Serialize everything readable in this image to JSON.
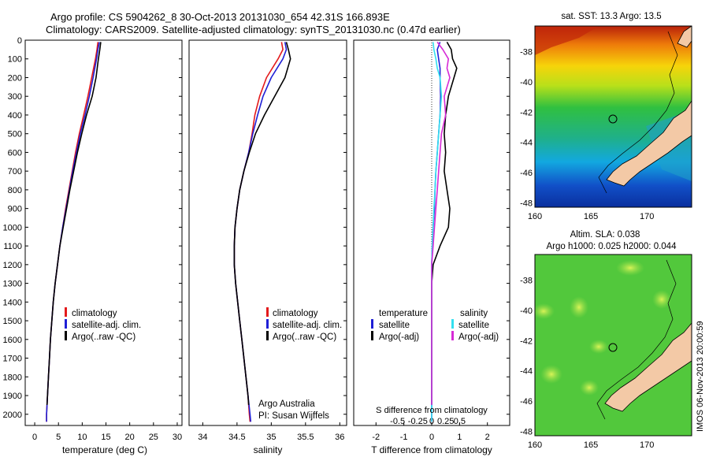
{
  "header": {
    "line1": "Argo profile: CS 5904262_8 30-Oct-2013 20131030_654 42.31S 166.893E",
    "line2": "Climatology: CARS2009. Satellite-adjusted climatology: synTS_20131030.nc (0.47d earlier)"
  },
  "colors": {
    "climatology": "#e31a1c",
    "satellite": "#1f1fd6",
    "argo": "#000000",
    "salinity_sat": "#33e0f0",
    "salinity_argo": "#d62ad6",
    "land": "#f3c9a6"
  },
  "chart_data": [
    {
      "type": "line",
      "xlabel": "temperature (deg C)",
      "ylabel": "",
      "xlim": [
        -2,
        31
      ],
      "ylim": [
        2060,
        0
      ],
      "y_reversed": true,
      "xticks": [
        0,
        5,
        10,
        15,
        20,
        25,
        30
      ],
      "yticks": [
        0,
        100,
        200,
        300,
        400,
        500,
        600,
        700,
        800,
        900,
        1000,
        1100,
        1200,
        1300,
        1400,
        1500,
        1600,
        1700,
        1800,
        1900,
        2000
      ],
      "legend": [
        "climatology",
        "satellite-adj. clim.",
        "Argo(..raw -QC)"
      ],
      "series": [
        {
          "name": "climatology",
          "color": "#e31a1c",
          "depth": [
            10,
            50,
            100,
            200,
            300,
            400,
            500,
            600,
            700,
            800,
            900,
            1000,
            1100,
            1200,
            1300,
            1400,
            1500,
            1600,
            1700,
            1800,
            1900,
            2000,
            2040
          ],
          "values": [
            13.3,
            13.1,
            12.8,
            12.0,
            11.2,
            10.3,
            9.4,
            8.6,
            7.9,
            7.2,
            6.5,
            5.9,
            5.3,
            4.8,
            4.3,
            3.9,
            3.6,
            3.3,
            3.1,
            2.9,
            2.7,
            2.5,
            2.5
          ]
        },
        {
          "name": "satellite-adj. clim.",
          "color": "#1f1fd6",
          "depth": [
            10,
            50,
            100,
            200,
            300,
            400,
            500,
            600,
            700,
            800,
            900,
            1000,
            1100,
            1200,
            1300,
            1400,
            1500,
            1600,
            1700,
            1800,
            1900,
            2000,
            2040
          ],
          "values": [
            13.6,
            13.3,
            13.0,
            12.3,
            11.5,
            10.6,
            9.6,
            8.8,
            8.0,
            7.3,
            6.6,
            5.9,
            5.3,
            4.8,
            4.3,
            3.9,
            3.6,
            3.3,
            3.1,
            2.9,
            2.7,
            2.5,
            2.5
          ]
        },
        {
          "name": "Argo(..raw -QC)",
          "color": "#000000",
          "depth": [
            10,
            50,
            100,
            200,
            300,
            400,
            500,
            600,
            700,
            800,
            900,
            1000,
            1100,
            1200,
            1300,
            1400,
            1500,
            1600,
            1700,
            1800,
            1900,
            1950
          ],
          "values": [
            13.9,
            13.7,
            13.4,
            12.9,
            12.1,
            10.9,
            9.9,
            9.0,
            8.2,
            7.4,
            6.7,
            6.0,
            5.3,
            4.8,
            4.3,
            3.9,
            3.6,
            3.3,
            3.1,
            2.9,
            2.7,
            2.6
          ]
        }
      ]
    },
    {
      "type": "line",
      "xlabel": "salinity",
      "xlim": [
        33.8,
        36.1
      ],
      "ylim": [
        2060,
        0
      ],
      "y_reversed": true,
      "xticks": [
        34,
        34.5,
        35,
        35.5,
        36
      ],
      "legend": [
        "climatology",
        "satellite-adj. clim.",
        "Argo(..raw -QC)"
      ],
      "series": [
        {
          "name": "climatology",
          "color": "#e31a1c",
          "depth": [
            10,
            50,
            100,
            200,
            300,
            400,
            500,
            600,
            700,
            800,
            900,
            1000,
            1100,
            1200,
            1300,
            1400,
            1500,
            1600,
            1700,
            1800,
            1900,
            2000,
            2040
          ],
          "values": [
            35.15,
            35.17,
            35.1,
            34.93,
            34.83,
            34.76,
            34.72,
            34.67,
            34.6,
            34.54,
            34.5,
            34.47,
            34.46,
            34.46,
            34.48,
            34.51,
            34.54,
            34.57,
            34.6,
            34.63,
            34.66,
            34.68,
            34.69
          ]
        },
        {
          "name": "satellite-adj. clim.",
          "color": "#1f1fd6",
          "depth": [
            10,
            50,
            100,
            200,
            300,
            400,
            500,
            600,
            700,
            800,
            900,
            1000,
            1100,
            1200,
            1300,
            1400,
            1500,
            1600,
            1700,
            1800,
            1900,
            2000,
            2040
          ],
          "values": [
            35.2,
            35.22,
            35.17,
            35.0,
            34.88,
            34.8,
            34.73,
            34.67,
            34.6,
            34.54,
            34.5,
            34.47,
            34.46,
            34.46,
            34.48,
            34.51,
            34.54,
            34.57,
            34.6,
            34.63,
            34.66,
            34.69,
            34.7
          ]
        },
        {
          "name": "Argo(..raw -QC)",
          "color": "#000000",
          "depth": [
            10,
            50,
            100,
            200,
            300,
            400,
            500,
            600,
            700,
            800,
            900,
            1000,
            1100,
            1200,
            1300,
            1400,
            1500,
            1600,
            1700,
            1800,
            1900,
            1950
          ],
          "values": [
            35.22,
            35.25,
            35.28,
            35.2,
            35.05,
            34.9,
            34.77,
            34.68,
            34.6,
            34.54,
            34.5,
            34.47,
            34.46,
            34.46,
            34.48,
            34.51,
            34.54,
            34.57,
            34.6,
            34.63,
            34.66,
            34.67
          ]
        }
      ],
      "annotations": [
        "Argo Australia",
        "PI: Susan Wijffels"
      ]
    },
    {
      "type": "line",
      "xlabel": "T difference from climatology",
      "xlabel_top": "S difference from climatology",
      "xlim": [
        -2.8,
        2.8
      ],
      "ylim": [
        2060,
        0
      ],
      "y_reversed": true,
      "xticks_bottom": [
        -2,
        -1,
        0,
        1,
        2
      ],
      "xticks_top": [
        "-0.5",
        "-0.25",
        "0",
        "0.25",
        "0.5"
      ],
      "legend_groups": [
        {
          "title": "temperature",
          "items": [
            "satellite",
            "Argo(-adj)"
          ]
        },
        {
          "title": "salinity",
          "items": [
            "satellite",
            "Argo(-adj)"
          ]
        }
      ],
      "series": [
        {
          "name": "temperature satellite",
          "color": "#1f1fd6",
          "depth": [
            10,
            50,
            100,
            150,
            200,
            300,
            400,
            500,
            600,
            700,
            800,
            900,
            1000,
            1100,
            1200,
            1300,
            1400,
            1500,
            1600,
            1700,
            1800,
            1900,
            2000,
            2040
          ],
          "values": [
            0.3,
            0.2,
            0.25,
            0.3,
            0.3,
            0.32,
            0.3,
            0.25,
            0.2,
            0.15,
            0.12,
            0.1,
            0.05,
            0.02,
            0.0,
            0.0,
            0.0,
            0.0,
            0.0,
            0.0,
            0.0,
            0.0,
            0.0,
            0.0
          ]
        },
        {
          "name": "temperature Argo(-adj)",
          "color": "#000000",
          "depth": [
            10,
            50,
            100,
            150,
            200,
            300,
            400,
            500,
            600,
            700,
            800,
            900,
            1000,
            1100,
            1200,
            1300,
            1400,
            1500,
            1600,
            1700,
            1800,
            1900,
            1950
          ],
          "values": [
            0.55,
            0.7,
            0.75,
            0.9,
            0.8,
            0.6,
            0.5,
            0.45,
            0.5,
            0.45,
            0.55,
            0.65,
            0.6,
            0.3,
            0.05,
            0.0,
            0.0,
            0.0,
            0.0,
            0.0,
            0.0,
            0.0,
            0.0
          ]
        },
        {
          "name": "salinity satellite",
          "color": "#33e0f0",
          "depth": [
            10,
            50,
            100,
            150,
            200,
            300,
            400,
            500,
            600,
            700,
            800,
            900,
            1000,
            1100,
            1200,
            1300,
            1400,
            1500,
            1600,
            1700,
            1800,
            1900,
            2000,
            2040
          ],
          "values": [
            0.05,
            0.08,
            0.15,
            0.2,
            0.3,
            0.35,
            0.3,
            0.25,
            0.2,
            0.15,
            0.12,
            0.08,
            0.05,
            0.02,
            0.0,
            0.0,
            0.0,
            0.0,
            0.0,
            0.0,
            0.0,
            0.0,
            0.0,
            0.0
          ]
        },
        {
          "name": "salinity Argo(-adj)",
          "color": "#d62ad6",
          "depth": [
            10,
            50,
            100,
            150,
            200,
            300,
            400,
            500,
            600,
            700,
            800,
            900,
            1000,
            1100,
            1200,
            1300,
            1400,
            1500,
            1600,
            1700,
            1800,
            1900,
            1950
          ],
          "values": [
            0.2,
            0.4,
            0.6,
            0.55,
            0.65,
            0.45,
            0.5,
            0.35,
            0.3,
            0.25,
            0.2,
            0.15,
            0.1,
            0.05,
            0.0,
            0.0,
            0.0,
            0.0,
            0.0,
            0.0,
            0.0,
            0.0,
            0.0
          ]
        }
      ]
    },
    {
      "type": "heatmap",
      "title": "sat. SST: 13.3 Argo: 13.5",
      "xlim": [
        160,
        174
      ],
      "ylim": [
        -48.3,
        -36.3
      ],
      "xticks": [
        160,
        165,
        170
      ],
      "yticks": [
        -38,
        -40,
        -42,
        -44,
        -46,
        -48
      ],
      "marker": {
        "lon": 166.893,
        "lat": -42.31
      }
    },
    {
      "type": "heatmap",
      "title": "Altim. SLA: 0.038",
      "subtitle": "Argo h1000: 0.025 h2000: 0.044",
      "xlim": [
        160,
        174
      ],
      "ylim": [
        -48.3,
        -36.3
      ],
      "xticks": [
        160,
        165,
        170
      ],
      "yticks": [
        -38,
        -40,
        -42,
        -44,
        -46,
        -48
      ],
      "marker": {
        "lon": 166.893,
        "lat": -42.31
      }
    }
  ],
  "legend": {
    "climatology": "climatology",
    "satellite_adj": "satellite-adj. clim.",
    "argo_raw": "Argo(..raw -QC)",
    "temperature": "temperature",
    "salinity": "salinity",
    "satellite": "satellite",
    "argo_adj": "Argo(-adj)"
  },
  "credits": {
    "org": "Argo Australia",
    "pi": "PI: Susan Wijffels"
  },
  "stamp": "IMOS 06-Nov-2013 20:00:59"
}
